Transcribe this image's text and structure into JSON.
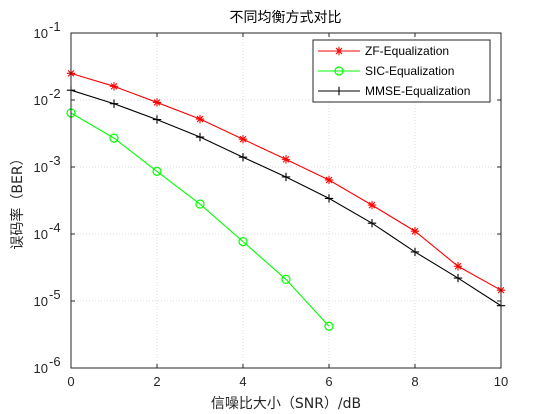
{
  "chart_data": {
    "type": "line",
    "title": "不同均衡方式对比",
    "xlabel": "信噪比大小（SNR）/dB",
    "ylabel": "误码率（BER）",
    "xlim": [
      0,
      10
    ],
    "ylim": [
      1e-06,
      0.1
    ],
    "yscale": "log",
    "grid": true,
    "legend_position": "top-right",
    "xticks": [
      0,
      2,
      4,
      6,
      8,
      10
    ],
    "xtick_labels": [
      "0",
      "2",
      "4",
      "6",
      "8",
      "10"
    ],
    "yticks": [
      1e-06,
      1e-05,
      0.0001,
      0.001,
      0.01,
      0.1
    ],
    "ytick_bases": [
      "10",
      "10",
      "10",
      "10",
      "10",
      "10"
    ],
    "ytick_exponents": [
      "-6",
      "-5",
      "-4",
      "-3",
      "-2",
      "-1"
    ],
    "series": [
      {
        "name": "ZF-Equalization",
        "color": "#ff0000",
        "marker": "asterisk",
        "x": [
          0,
          1,
          2,
          3,
          4,
          5,
          6,
          7,
          8,
          9,
          10
        ],
        "y": [
          0.025,
          0.016,
          0.0092,
          0.0052,
          0.0026,
          0.0013,
          0.00064,
          0.00027,
          0.00011,
          3.3e-05,
          1.45e-05
        ]
      },
      {
        "name": "SIC-Equalization",
        "color": "#00ff00",
        "marker": "circle",
        "x": [
          0,
          1,
          2,
          3,
          4,
          5,
          6
        ],
        "y": [
          0.0064,
          0.0027,
          0.00086,
          0.00028,
          7.7e-05,
          2.1e-05,
          4.2e-06
        ]
      },
      {
        "name": "MMSE-Equalization",
        "color": "#000000",
        "marker": "plus",
        "x": [
          0,
          1,
          2,
          3,
          4,
          5,
          6,
          7,
          8,
          9,
          10
        ],
        "y": [
          0.014,
          0.0088,
          0.0051,
          0.0028,
          0.0014,
          0.00071,
          0.00034,
          0.000145,
          5.4e-05,
          2.2e-05,
          8.5e-06
        ]
      }
    ]
  }
}
